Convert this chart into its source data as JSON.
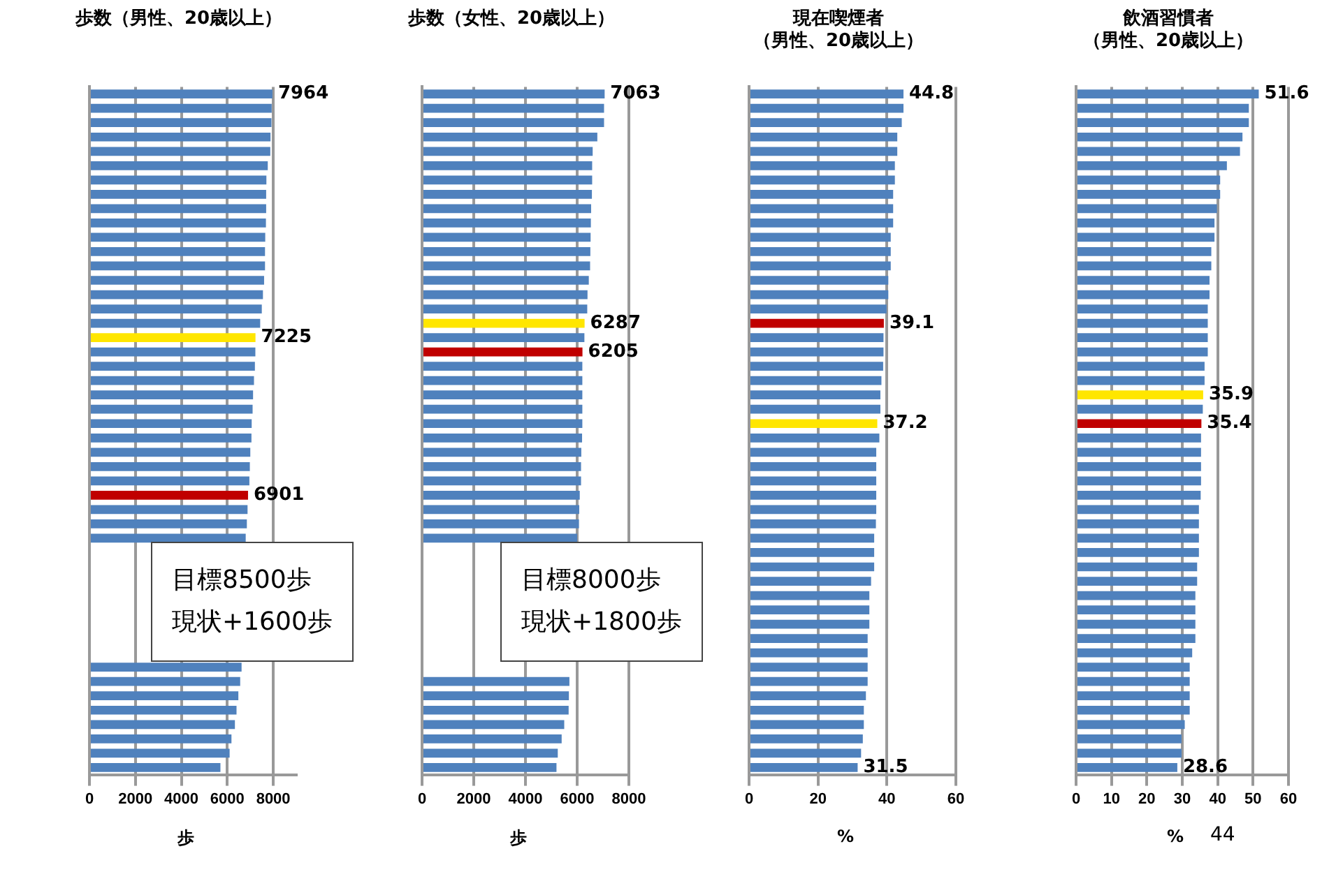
{
  "chart_data": [
    {
      "type": "bar",
      "orientation": "horizontal",
      "title": "歩数（男性、20歳以上）",
      "xlabel": "歩",
      "categories": [
        null,
        null,
        null,
        null,
        null,
        null,
        null,
        null,
        null,
        null,
        null,
        null,
        null,
        null,
        null,
        null,
        null,
        null,
        null,
        null,
        null,
        null,
        null,
        null,
        null,
        null,
        null,
        null,
        null,
        null,
        null,
        null,
        null,
        null,
        null,
        null,
        null,
        null,
        null,
        null,
        null,
        null,
        null,
        null,
        null,
        null,
        null,
        null
      ],
      "values": [
        7964,
        7930,
        7920,
        7880,
        7870,
        7760,
        7700,
        7690,
        7690,
        7680,
        7650,
        7640,
        7640,
        7600,
        7550,
        7500,
        7430,
        7225,
        7220,
        7200,
        7160,
        7120,
        7100,
        7060,
        7050,
        7000,
        6980,
        6960,
        6901,
        6880,
        6850,
        6800,
        null,
        null,
        null,
        null,
        null,
        null,
        null,
        null,
        6620,
        6560,
        6480,
        6400,
        6330,
        6180,
        6100,
        5700
      ],
      "colors": [
        "#4f81bd",
        "#4f81bd",
        "#4f81bd",
        "#4f81bd",
        "#4f81bd",
        "#4f81bd",
        "#4f81bd",
        "#4f81bd",
        "#4f81bd",
        "#4f81bd",
        "#4f81bd",
        "#4f81bd",
        "#4f81bd",
        "#4f81bd",
        "#4f81bd",
        "#4f81bd",
        "#4f81bd",
        "#ffe600",
        "#4f81bd",
        "#4f81bd",
        "#4f81bd",
        "#4f81bd",
        "#4f81bd",
        "#4f81bd",
        "#4f81bd",
        "#4f81bd",
        "#4f81bd",
        "#4f81bd",
        "#c00000",
        "#4f81bd",
        "#4f81bd",
        "#4f81bd",
        "#4f81bd",
        "#4f81bd",
        "#4f81bd",
        "#4f81bd",
        "#4f81bd",
        "#4f81bd",
        "#4f81bd",
        "#4f81bd",
        "#4f81bd",
        "#4f81bd",
        "#4f81bd",
        "#4f81bd",
        "#4f81bd",
        "#4f81bd",
        "#4f81bd",
        "#4f81bd"
      ],
      "value_labels": [
        "7964",
        null,
        null,
        null,
        null,
        null,
        null,
        null,
        null,
        null,
        null,
        null,
        null,
        null,
        null,
        null,
        null,
        "7225",
        null,
        null,
        null,
        null,
        null,
        null,
        null,
        null,
        null,
        null,
        "6901",
        null,
        null,
        null,
        null,
        null,
        null,
        null,
        null,
        null,
        null,
        null,
        null,
        null,
        null,
        null,
        null,
        null,
        null,
        null
      ],
      "xlim": [
        0,
        9000
      ],
      "xticks": [
        0,
        2000,
        4000,
        6000,
        8000
      ],
      "grid": "x",
      "annotations": [
        "目標8500歩",
        "現状+1600歩"
      ]
    },
    {
      "type": "bar",
      "orientation": "horizontal",
      "title": "歩数（女性、20歳以上）",
      "xlabel": "歩",
      "categories": [
        null,
        null,
        null,
        null,
        null,
        null,
        null,
        null,
        null,
        null,
        null,
        null,
        null,
        null,
        null,
        null,
        null,
        null,
        null,
        null,
        null,
        null,
        null,
        null,
        null,
        null,
        null,
        null,
        null,
        null,
        null,
        null,
        null,
        null,
        null,
        null,
        null,
        null,
        null,
        null,
        null,
        null,
        null,
        null,
        null,
        null,
        null,
        null
      ],
      "values": [
        7063,
        7040,
        7040,
        6780,
        6600,
        6580,
        6580,
        6570,
        6540,
        6530,
        6520,
        6510,
        6500,
        6450,
        6400,
        6390,
        6287,
        6280,
        6205,
        6200,
        6200,
        6200,
        6200,
        6200,
        6190,
        6160,
        6150,
        6150,
        6100,
        6080,
        6070,
        6000,
        null,
        null,
        null,
        null,
        null,
        null,
        null,
        null,
        null,
        5700,
        5680,
        5670,
        5500,
        5400,
        5250,
        5200
      ],
      "colors": [
        "#4f81bd",
        "#4f81bd",
        "#4f81bd",
        "#4f81bd",
        "#4f81bd",
        "#4f81bd",
        "#4f81bd",
        "#4f81bd",
        "#4f81bd",
        "#4f81bd",
        "#4f81bd",
        "#4f81bd",
        "#4f81bd",
        "#4f81bd",
        "#4f81bd",
        "#4f81bd",
        "#ffe600",
        "#4f81bd",
        "#c00000",
        "#4f81bd",
        "#4f81bd",
        "#4f81bd",
        "#4f81bd",
        "#4f81bd",
        "#4f81bd",
        "#4f81bd",
        "#4f81bd",
        "#4f81bd",
        "#4f81bd",
        "#4f81bd",
        "#4f81bd",
        "#4f81bd",
        "#4f81bd",
        "#4f81bd",
        "#4f81bd",
        "#4f81bd",
        "#4f81bd",
        "#4f81bd",
        "#4f81bd",
        "#4f81bd",
        "#4f81bd",
        "#4f81bd",
        "#4f81bd",
        "#4f81bd",
        "#4f81bd",
        "#4f81bd",
        "#4f81bd",
        "#4f81bd"
      ],
      "value_labels": [
        "7063",
        null,
        null,
        null,
        null,
        null,
        null,
        null,
        null,
        null,
        null,
        null,
        null,
        null,
        null,
        null,
        "6287",
        null,
        "6205",
        null,
        null,
        null,
        null,
        null,
        null,
        null,
        null,
        null,
        null,
        null,
        null,
        null,
        null,
        null,
        null,
        null,
        null,
        null,
        null,
        null,
        null,
        null,
        null,
        null,
        null,
        null,
        null,
        null
      ],
      "xlim": [
        0,
        8000
      ],
      "xticks": [
        0,
        2000,
        4000,
        6000,
        8000
      ],
      "grid": "x",
      "annotations": [
        "目標8000歩",
        "現状+1800歩"
      ]
    },
    {
      "type": "bar",
      "orientation": "horizontal",
      "title": "現在喫煙者",
      "subtitle": "（男性、20歳以上）",
      "xlabel": "%",
      "categories": [
        null,
        null,
        null,
        null,
        null,
        null,
        null,
        null,
        null,
        null,
        null,
        null,
        null,
        null,
        null,
        null,
        null,
        null,
        null,
        null,
        null,
        null,
        null,
        null,
        null,
        null,
        null,
        null,
        null,
        null,
        null,
        null,
        null,
        null,
        null,
        null,
        null,
        null,
        null,
        null,
        null,
        null,
        null,
        null,
        null,
        null,
        null,
        null
      ],
      "values": [
        44.8,
        44.8,
        44.3,
        43.0,
        43.0,
        42.3,
        42.3,
        41.8,
        41.8,
        41.8,
        41.1,
        41.1,
        41.1,
        40.4,
        40.4,
        39.9,
        39.1,
        39.0,
        39.0,
        38.9,
        38.4,
        38.1,
        38.1,
        37.2,
        37.8,
        36.9,
        36.9,
        36.9,
        36.9,
        36.9,
        36.8,
        36.3,
        36.3,
        36.3,
        35.4,
        34.9,
        34.9,
        34.9,
        34.4,
        34.4,
        34.4,
        34.4,
        33.9,
        33.3,
        33.3,
        33.0,
        32.5,
        31.5
      ],
      "colors": [
        "#4f81bd",
        "#4f81bd",
        "#4f81bd",
        "#4f81bd",
        "#4f81bd",
        "#4f81bd",
        "#4f81bd",
        "#4f81bd",
        "#4f81bd",
        "#4f81bd",
        "#4f81bd",
        "#4f81bd",
        "#4f81bd",
        "#4f81bd",
        "#4f81bd",
        "#4f81bd",
        "#c00000",
        "#4f81bd",
        "#4f81bd",
        "#4f81bd",
        "#4f81bd",
        "#4f81bd",
        "#4f81bd",
        "#ffe600",
        "#4f81bd",
        "#4f81bd",
        "#4f81bd",
        "#4f81bd",
        "#4f81bd",
        "#4f81bd",
        "#4f81bd",
        "#4f81bd",
        "#4f81bd",
        "#4f81bd",
        "#4f81bd",
        "#4f81bd",
        "#4f81bd",
        "#4f81bd",
        "#4f81bd",
        "#4f81bd",
        "#4f81bd",
        "#4f81bd",
        "#4f81bd",
        "#4f81bd",
        "#4f81bd",
        "#4f81bd",
        "#4f81bd",
        "#4f81bd"
      ],
      "value_labels": [
        "44.8",
        null,
        null,
        null,
        null,
        null,
        null,
        null,
        null,
        null,
        null,
        null,
        null,
        null,
        null,
        null,
        "39.1",
        null,
        null,
        null,
        null,
        null,
        null,
        "37.2",
        null,
        null,
        null,
        null,
        null,
        null,
        null,
        null,
        null,
        null,
        null,
        null,
        null,
        null,
        null,
        null,
        null,
        null,
        null,
        null,
        null,
        null,
        null,
        "31.5"
      ],
      "xlim": [
        0,
        60
      ],
      "xticks": [
        0,
        20,
        40,
        60
      ],
      "grid": "x"
    },
    {
      "type": "bar",
      "orientation": "horizontal",
      "title": "飲酒習慣者",
      "subtitle": "（男性、20歳以上）",
      "xlabel": "%",
      "categories": [
        null,
        null,
        null,
        null,
        null,
        null,
        null,
        null,
        null,
        null,
        null,
        null,
        null,
        null,
        null,
        null,
        null,
        null,
        null,
        null,
        null,
        null,
        null,
        null,
        null,
        null,
        null,
        null,
        null,
        null,
        null,
        null,
        null,
        null,
        null,
        null,
        null,
        null,
        null,
        null,
        null,
        null,
        null,
        null,
        null,
        null,
        null,
        null
      ],
      "values": [
        51.6,
        48.8,
        48.8,
        47.0,
        46.3,
        42.6,
        40.7,
        40.7,
        39.8,
        39.1,
        39.1,
        38.2,
        38.2,
        37.7,
        37.7,
        37.2,
        37.2,
        37.2,
        37.2,
        36.3,
        36.3,
        35.9,
        35.8,
        35.4,
        35.3,
        35.3,
        35.3,
        35.3,
        35.2,
        34.7,
        34.7,
        34.7,
        34.7,
        34.2,
        34.2,
        33.7,
        33.7,
        33.7,
        33.7,
        32.8,
        32.1,
        32.1,
        32.1,
        32.1,
        30.7,
        29.8,
        29.8,
        28.6
      ],
      "colors": [
        "#4f81bd",
        "#4f81bd",
        "#4f81bd",
        "#4f81bd",
        "#4f81bd",
        "#4f81bd",
        "#4f81bd",
        "#4f81bd",
        "#4f81bd",
        "#4f81bd",
        "#4f81bd",
        "#4f81bd",
        "#4f81bd",
        "#4f81bd",
        "#4f81bd",
        "#4f81bd",
        "#4f81bd",
        "#4f81bd",
        "#4f81bd",
        "#4f81bd",
        "#4f81bd",
        "#ffe600",
        "#4f81bd",
        "#c00000",
        "#4f81bd",
        "#4f81bd",
        "#4f81bd",
        "#4f81bd",
        "#4f81bd",
        "#4f81bd",
        "#4f81bd",
        "#4f81bd",
        "#4f81bd",
        "#4f81bd",
        "#4f81bd",
        "#4f81bd",
        "#4f81bd",
        "#4f81bd",
        "#4f81bd",
        "#4f81bd",
        "#4f81bd",
        "#4f81bd",
        "#4f81bd",
        "#4f81bd",
        "#4f81bd",
        "#4f81bd",
        "#4f81bd",
        "#4f81bd"
      ],
      "value_labels": [
        "51.6",
        null,
        null,
        null,
        null,
        null,
        null,
        null,
        null,
        null,
        null,
        null,
        null,
        null,
        null,
        null,
        null,
        null,
        null,
        null,
        null,
        "35.9",
        null,
        "35.4",
        null,
        null,
        null,
        null,
        null,
        null,
        null,
        null,
        null,
        null,
        null,
        null,
        null,
        null,
        null,
        null,
        null,
        null,
        null,
        null,
        null,
        null,
        null,
        "28.6"
      ],
      "xlim": [
        0,
        60
      ],
      "xticks": [
        0,
        10,
        20,
        30,
        40,
        50,
        60
      ],
      "grid": "x",
      "annotations": [
        "44"
      ]
    }
  ]
}
